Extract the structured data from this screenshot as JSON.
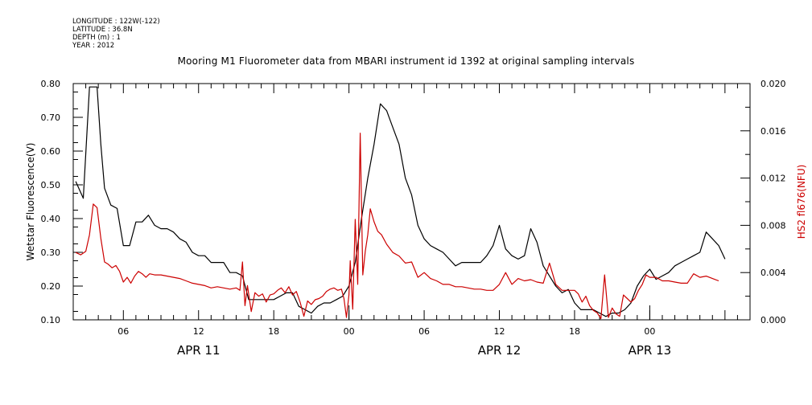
{
  "metadata": [
    {
      "label": "LONGITUDE",
      "value": "122W(-122)"
    },
    {
      "label": "LATITUDE",
      "value": "36.8N"
    },
    {
      "label": "DEPTH (m)",
      "value": "1"
    },
    {
      "label": "YEAR",
      "value": "2012"
    }
  ],
  "chart_data": {
    "type": "line",
    "title": "Mooring M1 Fluorometer data from MBARI instrument id 1392 at original sampling intervals",
    "x_unit": "hours since 2012-04-11 00:00",
    "xlim": [
      2,
      56
    ],
    "x_ticks": [
      {
        "x": 6,
        "label": "06"
      },
      {
        "x": 12,
        "label": "12"
      },
      {
        "x": 18,
        "label": "18"
      },
      {
        "x": 24,
        "label": "00"
      },
      {
        "x": 30,
        "label": "06"
      },
      {
        "x": 36,
        "label": "12"
      },
      {
        "x": 42,
        "label": "18"
      },
      {
        "x": 48,
        "label": "00"
      }
    ],
    "date_labels": [
      {
        "x": 12,
        "label": "APR 11"
      },
      {
        "x": 36,
        "label": "APR 12"
      },
      {
        "x": 48,
        "label": "APR 13"
      }
    ],
    "y_left": {
      "label": "Wetstar Fluorescence(V)",
      "lim": [
        0.1,
        0.8
      ],
      "ticks": [
        "0.10",
        "0.20",
        "0.30",
        "0.40",
        "0.50",
        "0.60",
        "0.70",
        "0.80"
      ]
    },
    "y_right": {
      "label": "HS2 fl676(NFU)",
      "lim": [
        0.0,
        0.02
      ],
      "ticks": [
        "0.000",
        "0.004",
        "0.008",
        "0.012",
        "0.016",
        "0.020"
      ],
      "label_color": "#cc0000"
    },
    "series": [
      {
        "axis": "left",
        "color": "#000000",
        "x": [
          2.2,
          2.8,
          3.3,
          3.6,
          3.9,
          4.2,
          4.5,
          5.0,
          5.5,
          6.0,
          6.5,
          7.0,
          7.5,
          8.0,
          8.5,
          9.0,
          9.5,
          10.0,
          10.5,
          11.0,
          11.5,
          12.0,
          12.5,
          13.0,
          13.5,
          14.0,
          14.5,
          15.0,
          15.5,
          16.0,
          16.5,
          17.0,
          17.5,
          18.0,
          18.5,
          19.0,
          19.5,
          20.0,
          20.5,
          21.0,
          21.5,
          22.0,
          22.5,
          23.0,
          23.5,
          24.0,
          24.5,
          25.0,
          25.5,
          26.0,
          26.5,
          27.0,
          27.5,
          28.0,
          28.5,
          29.0,
          29.5,
          30.0,
          30.5,
          31.0,
          31.5,
          32.0,
          32.5,
          33.0,
          33.5,
          34.0,
          34.5,
          35.0,
          35.5,
          36.0,
          36.5,
          37.0,
          37.5,
          38.0,
          38.5,
          39.0,
          39.5,
          40.0,
          40.5,
          41.0,
          41.5,
          42.0,
          42.5,
          43.0,
          43.5,
          44.0,
          44.5,
          45.0,
          45.5,
          46.0,
          46.5,
          47.0,
          47.5,
          48.0,
          48.5,
          49.0,
          49.5,
          50.0,
          50.5,
          51.0,
          51.5,
          52.0,
          52.5,
          53.0,
          53.5,
          54.0
        ],
        "values": [
          0.51,
          0.46,
          0.79,
          0.79,
          0.79,
          0.62,
          0.49,
          0.44,
          0.43,
          0.32,
          0.32,
          0.39,
          0.39,
          0.41,
          0.38,
          0.37,
          0.37,
          0.36,
          0.34,
          0.33,
          0.3,
          0.29,
          0.29,
          0.27,
          0.27,
          0.27,
          0.24,
          0.24,
          0.23,
          0.16,
          0.16,
          0.16,
          0.16,
          0.16,
          0.17,
          0.18,
          0.18,
          0.14,
          0.13,
          0.12,
          0.14,
          0.15,
          0.15,
          0.16,
          0.17,
          0.2,
          0.27,
          0.4,
          0.52,
          0.62,
          0.74,
          0.72,
          0.67,
          0.62,
          0.52,
          0.47,
          0.38,
          0.34,
          0.32,
          0.31,
          0.3,
          0.28,
          0.26,
          0.27,
          0.27,
          0.27,
          0.27,
          0.29,
          0.32,
          0.38,
          0.31,
          0.29,
          0.28,
          0.29,
          0.37,
          0.33,
          0.26,
          0.23,
          0.2,
          0.18,
          0.19,
          0.15,
          0.13,
          0.13,
          0.13,
          0.12,
          0.11,
          0.12,
          0.12,
          0.13,
          0.15,
          0.2,
          0.23,
          0.25,
          0.22,
          0.23,
          0.24,
          0.26,
          0.27,
          0.28,
          0.29,
          0.3,
          0.36,
          0.34,
          0.32,
          0.28
        ]
      },
      {
        "axis": "right",
        "color": "#cc0000",
        "x": [
          2.2,
          2.6,
          3.0,
          3.3,
          3.6,
          3.9,
          4.2,
          4.5,
          4.8,
          5.1,
          5.4,
          5.7,
          6.0,
          6.3,
          6.6,
          6.9,
          7.2,
          7.5,
          7.8,
          8.1,
          8.5,
          9.0,
          9.5,
          10.0,
          10.5,
          11.0,
          11.5,
          12.0,
          12.5,
          13.0,
          13.5,
          14.0,
          14.5,
          15.0,
          15.3,
          15.5,
          15.7,
          15.9,
          16.2,
          16.5,
          16.8,
          17.1,
          17.4,
          17.7,
          18.0,
          18.3,
          18.6,
          18.9,
          19.2,
          19.5,
          19.8,
          20.1,
          20.4,
          20.7,
          21.0,
          21.3,
          21.6,
          21.9,
          22.2,
          22.5,
          22.8,
          23.1,
          23.4,
          23.6,
          23.8,
          24.0,
          24.1,
          24.3,
          24.5,
          24.7,
          24.9,
          25.1,
          25.3,
          25.5,
          25.7,
          26.0,
          26.3,
          26.6,
          27.0,
          27.5,
          28.0,
          28.5,
          29.0,
          29.5,
          30.0,
          30.5,
          31.0,
          31.5,
          32.0,
          32.5,
          33.0,
          33.5,
          34.0,
          34.5,
          35.0,
          35.5,
          36.0,
          36.5,
          37.0,
          37.5,
          38.0,
          38.5,
          39.0,
          39.5,
          40.0,
          40.5,
          41.0,
          41.5,
          42.0,
          42.3,
          42.6,
          42.9,
          43.2,
          43.5,
          43.8,
          44.1,
          44.4,
          44.7,
          45.0,
          45.3,
          45.6,
          45.9,
          46.2,
          46.5,
          46.8,
          47.1,
          47.4,
          47.7,
          48.0,
          48.5,
          49.0,
          49.5,
          50.0,
          50.5,
          51.0,
          51.5,
          52.0,
          52.5,
          53.0,
          53.5
        ],
        "values": [
          0.0057,
          0.0055,
          0.0058,
          0.0072,
          0.0098,
          0.0095,
          0.0069,
          0.0049,
          0.0047,
          0.0044,
          0.0046,
          0.0041,
          0.0032,
          0.0036,
          0.0031,
          0.0037,
          0.0041,
          0.0039,
          0.0036,
          0.0039,
          0.0038,
          0.0038,
          0.0037,
          0.0036,
          0.0035,
          0.0033,
          0.0031,
          0.003,
          0.0029,
          0.0027,
          0.0028,
          0.0027,
          0.0026,
          0.0027,
          0.0025,
          0.0049,
          0.0012,
          0.0029,
          0.0007,
          0.0023,
          0.002,
          0.0022,
          0.0015,
          0.0021,
          0.0022,
          0.0025,
          0.0027,
          0.0023,
          0.0028,
          0.0021,
          0.0024,
          0.0015,
          0.0003,
          0.0016,
          0.0013,
          0.0017,
          0.0018,
          0.002,
          0.0024,
          0.0026,
          0.0027,
          0.0025,
          0.0026,
          0.0018,
          0.0002,
          0.0021,
          0.005,
          0.0009,
          0.0085,
          0.003,
          0.0158,
          0.0038,
          0.0058,
          0.0072,
          0.0094,
          0.0083,
          0.0075,
          0.0072,
          0.0064,
          0.0057,
          0.0054,
          0.0048,
          0.0049,
          0.0036,
          0.004,
          0.0035,
          0.0033,
          0.003,
          0.003,
          0.0028,
          0.0028,
          0.0027,
          0.0026,
          0.0026,
          0.0025,
          0.0025,
          0.003,
          0.004,
          0.003,
          0.0035,
          0.0033,
          0.0034,
          0.0032,
          0.0031,
          0.0048,
          0.003,
          0.0025,
          0.0025,
          0.0025,
          0.0022,
          0.0015,
          0.002,
          0.0012,
          0.0008,
          0.0006,
          0.0001,
          0.0038,
          0.0002,
          0.001,
          0.0005,
          0.0003,
          0.0021,
          0.0018,
          0.0015,
          0.0018,
          0.0025,
          0.003,
          0.0038,
          0.0036,
          0.0036,
          0.0033,
          0.0033,
          0.0032,
          0.0031,
          0.0031,
          0.0039,
          0.0036,
          0.0037,
          0.0035,
          0.0033
        ]
      }
    ]
  }
}
